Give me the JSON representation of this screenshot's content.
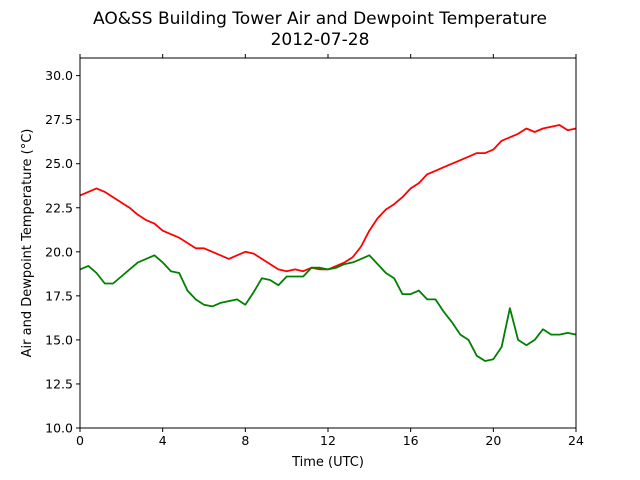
{
  "chart_data": {
    "type": "line",
    "title": "AO&SS Building Tower Air and Dewpoint Temperature",
    "subtitle": "2012-07-28",
    "xlabel": "Time (UTC)",
    "ylabel": "Air and Dewpoint Temperature (°C)",
    "xlim": [
      0,
      24
    ],
    "ylim": [
      10.0,
      31.0
    ],
    "x_ticks": [
      "0",
      "4",
      "8",
      "12",
      "16",
      "20",
      "24"
    ],
    "y_ticks": [
      "10.0",
      "12.5",
      "15.0",
      "17.5",
      "20.0",
      "22.5",
      "25.0",
      "27.5",
      "30.0"
    ],
    "grid": false,
    "legend": "none",
    "series": [
      {
        "color": "#ff0000",
        "x": [
          0,
          0.4,
          0.8,
          1.2,
          1.6,
          2.0,
          2.4,
          2.8,
          3.2,
          3.6,
          4.0,
          4.4,
          4.8,
          5.2,
          5.6,
          6.0,
          6.4,
          6.8,
          7.2,
          7.6,
          8.0,
          8.4,
          8.8,
          9.2,
          9.6,
          10.0,
          10.4,
          10.8,
          11.2,
          11.6,
          12.0,
          12.4,
          12.8,
          13.2,
          13.6,
          14.0,
          14.4,
          14.8,
          15.2,
          15.6,
          16.0,
          16.4,
          16.8,
          17.2,
          17.6,
          18.0,
          18.4,
          18.8,
          19.2,
          19.6,
          20.0,
          20.4,
          20.8,
          21.2,
          21.6,
          22.0,
          22.4,
          22.8,
          23.2,
          23.6,
          24.0
        ],
        "y": [
          23.2,
          23.4,
          23.6,
          23.4,
          23.1,
          22.8,
          22.5,
          22.1,
          21.8,
          21.6,
          21.2,
          21.0,
          20.8,
          20.5,
          20.2,
          20.2,
          20.0,
          19.8,
          19.6,
          19.8,
          20.0,
          19.9,
          19.6,
          19.3,
          19.0,
          18.9,
          19.0,
          18.9,
          19.1,
          19.0,
          19.0,
          19.2,
          19.4,
          19.7,
          20.3,
          21.2,
          21.9,
          22.4,
          22.7,
          23.1,
          23.6,
          23.9,
          24.4,
          24.6,
          24.8,
          25.0,
          25.2,
          25.4,
          25.6,
          25.6,
          25.8,
          26.3,
          26.5,
          26.7,
          27.0,
          26.8,
          27.0,
          27.1,
          27.2,
          26.9,
          27.0
        ]
      },
      {
        "color": "#008000",
        "x": [
          0,
          0.4,
          0.8,
          1.2,
          1.6,
          2.0,
          2.4,
          2.8,
          3.2,
          3.6,
          4.0,
          4.4,
          4.8,
          5.2,
          5.6,
          6.0,
          6.4,
          6.8,
          7.2,
          7.6,
          8.0,
          8.4,
          8.8,
          9.2,
          9.6,
          10.0,
          10.4,
          10.8,
          11.2,
          11.6,
          12.0,
          12.4,
          12.8,
          13.2,
          13.6,
          14.0,
          14.4,
          14.8,
          15.2,
          15.6,
          16.0,
          16.4,
          16.8,
          17.2,
          17.6,
          18.0,
          18.4,
          18.8,
          19.2,
          19.6,
          20.0,
          20.4,
          20.8,
          21.2,
          21.6,
          22.0,
          22.4,
          22.8,
          23.2,
          23.6,
          24.0
        ],
        "y": [
          19.0,
          19.2,
          18.8,
          18.2,
          18.2,
          18.6,
          19.0,
          19.4,
          19.6,
          19.8,
          19.4,
          18.9,
          18.8,
          17.8,
          17.3,
          17.0,
          16.9,
          17.1,
          17.2,
          17.3,
          17.0,
          17.7,
          18.5,
          18.4,
          18.1,
          18.6,
          18.6,
          18.6,
          19.1,
          19.1,
          19.0,
          19.1,
          19.3,
          19.4,
          19.6,
          19.8,
          19.3,
          18.8,
          18.5,
          17.6,
          17.6,
          17.8,
          17.3,
          17.3,
          16.6,
          16.0,
          15.3,
          15.0,
          14.1,
          13.8,
          13.9,
          14.6,
          16.8,
          15.0,
          14.7,
          15.0,
          15.6,
          15.3,
          15.3,
          15.4,
          15.3
        ]
      }
    ]
  }
}
